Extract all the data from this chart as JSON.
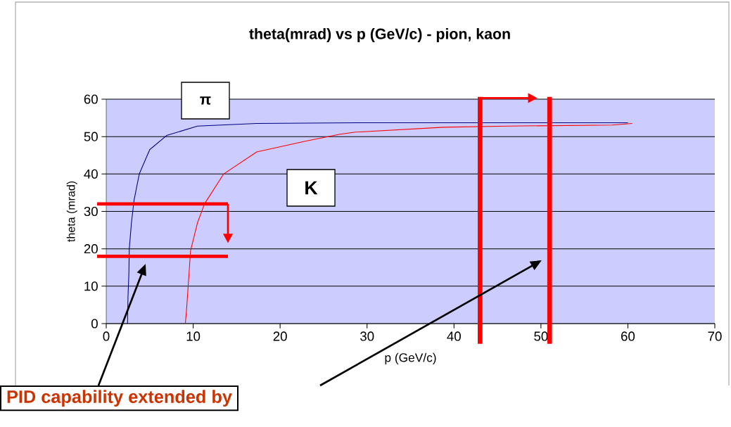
{
  "chart_data": {
    "type": "line",
    "title": "theta(mrad) vs p (GeV/c) - pion, kaon",
    "xlabel": "p (GeV/c)",
    "ylabel": "theta (mrad)",
    "xlim": [
      0,
      70
    ],
    "ylim": [
      0,
      60
    ],
    "xticks": [
      0,
      10,
      20,
      30,
      40,
      50,
      60,
      70
    ],
    "yticks": [
      0,
      10,
      20,
      30,
      40,
      50,
      60
    ],
    "grid": "y",
    "legend": false,
    "marker": "none",
    "line_style": "solid",
    "series": [
      {
        "name": "π",
        "color": "#000080",
        "x": [
          2.45,
          2.5,
          2.6,
          2.65,
          2.9,
          3.2,
          3.8,
          5,
          6.95,
          10.5,
          17.3,
          30,
          45,
          60
        ],
        "values": [
          0,
          7,
          13,
          20,
          27,
          33,
          40,
          46.5,
          50.3,
          52.8,
          53.5,
          53.7,
          53.7,
          53.7
        ]
      },
      {
        "name": "K",
        "color": "#ff0000",
        "x": [
          9.1,
          9.26,
          9.7,
          10.5,
          11.3,
          13.5,
          17.3,
          22.8,
          26.8,
          28.7,
          38.8,
          46.2,
          58.2,
          60.5
        ],
        "values": [
          0,
          4.4,
          19.5,
          27,
          32,
          40,
          45.9,
          48.7,
          50.6,
          51.2,
          52.5,
          52.8,
          53.1,
          53.5
        ]
      }
    ],
    "ref_lines": [
      {
        "axis": "y",
        "value": 32,
        "color": "#ff0000"
      },
      {
        "axis": "y",
        "value": 18,
        "color": "#ff0000"
      },
      {
        "axis": "x",
        "value": 43,
        "color": "#ff0000"
      },
      {
        "axis": "x",
        "value": 51,
        "color": "#ff0000"
      }
    ],
    "annotations": [
      "PID capability extended by"
    ]
  }
}
